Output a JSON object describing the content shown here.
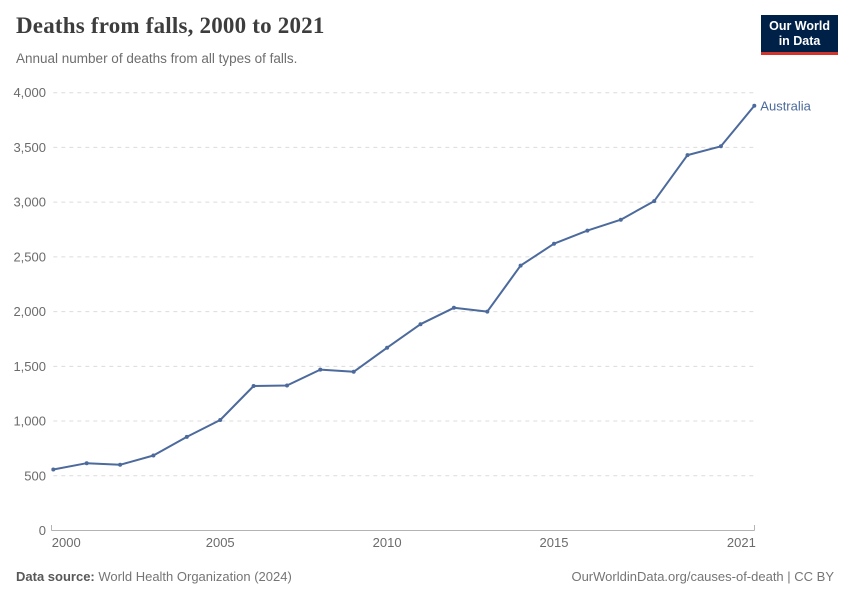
{
  "header": {
    "logo": {
      "line1": "Our World",
      "line2": "in Data",
      "bg_color": "#002147",
      "accent_color": "#d0342c"
    }
  },
  "chart_data": {
    "type": "line",
    "title": "Deaths from falls, 2000 to 2021",
    "subtitle": "Annual number of deaths from all types of falls.",
    "xlabel": "",
    "ylabel": "",
    "xlim": [
      2000,
      2021
    ],
    "ylim": [
      0,
      4000
    ],
    "yticks": [
      0,
      500,
      1000,
      1500,
      2000,
      2500,
      3000,
      3500,
      4000
    ],
    "xticks": [
      2000,
      2005,
      2010,
      2015,
      2021
    ],
    "grid": "horizontal-dashed",
    "legend": "inline-end-label",
    "series": [
      {
        "name": "Australia",
        "color": "#4c6a9c",
        "x": [
          2000,
          2001,
          2002,
          2003,
          2004,
          2005,
          2006,
          2007,
          2008,
          2009,
          2010,
          2011,
          2012,
          2013,
          2014,
          2015,
          2016,
          2017,
          2018,
          2019,
          2020,
          2021
        ],
        "values": [
          557,
          615,
          600,
          685,
          855,
          1010,
          1320,
          1325,
          1470,
          1450,
          1670,
          1885,
          2035,
          2000,
          2420,
          2620,
          2740,
          2840,
          3010,
          3430,
          3510,
          3880
        ]
      }
    ]
  },
  "footer": {
    "datasource_label": "Data source:",
    "datasource_value": "World Health Organization (2024)",
    "citation": "OurWorldinData.org/causes-of-death | CC BY"
  }
}
